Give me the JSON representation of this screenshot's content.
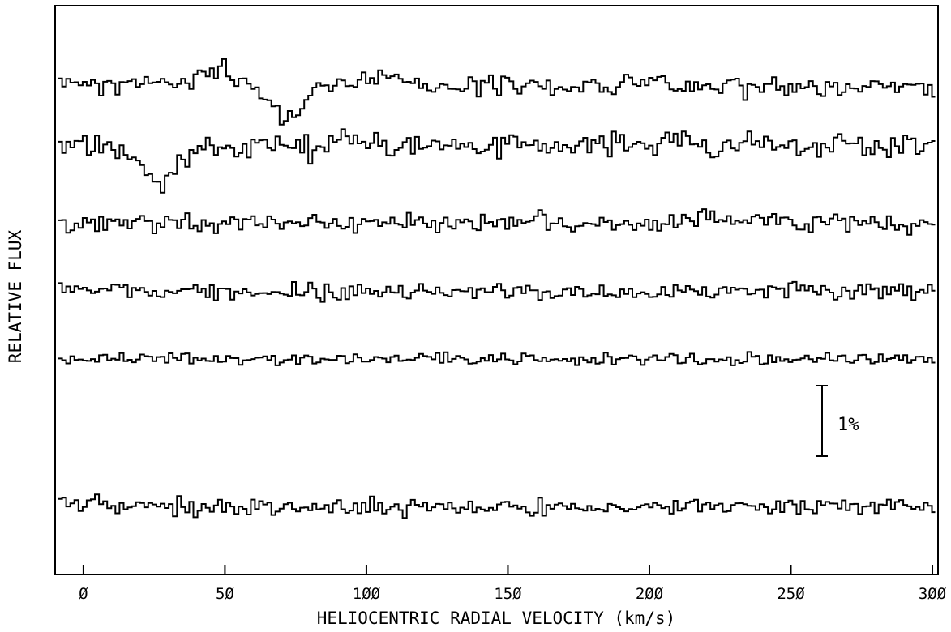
{
  "chart_data": {
    "type": "line",
    "title": "",
    "xlabel": "HELIOCENTRIC RADIAL VELOCITY (km/s)",
    "ylabel": "RELATIVE FLUX",
    "xlim": [
      -10,
      302
    ],
    "xticks": [
      0,
      50,
      100,
      150,
      200,
      250,
      300
    ],
    "xtick_labels": [
      "Ø",
      "5Ø",
      "1ØØ",
      "15Ø",
      "2ØØ",
      "25Ø",
      "3ØØ"
    ],
    "scale_bar": {
      "label": "1%",
      "percent": 1
    },
    "grid": false,
    "legend": "none",
    "line_color": "#000000",
    "series": [
      {
        "kind": "step",
        "seed": 11,
        "amp": 0.18,
        "features": [
          {
            "center": 72,
            "width": 6,
            "depth": 1.1
          },
          {
            "center": 45,
            "width": 6,
            "depth": -0.5
          },
          {
            "center": 105,
            "width": 8,
            "depth": -0.35
          }
        ]
      },
      {
        "kind": "step",
        "seed": 23,
        "amp": 0.22,
        "features": [
          {
            "center": 25,
            "width": 7,
            "depth": 1.2
          },
          {
            "center": 212,
            "width": 2,
            "depth": -0.5
          },
          {
            "center": 268,
            "width": 2,
            "depth": -0.45
          }
        ]
      },
      {
        "kind": "step",
        "seed": 37,
        "amp": 0.16,
        "features": [
          {
            "center": -6,
            "width": 1.5,
            "depth": 0.45
          },
          {
            "center": 160,
            "width": 2,
            "depth": -0.35
          },
          {
            "center": 222,
            "width": 3,
            "depth": -0.3
          }
        ]
      },
      {
        "kind": "step",
        "seed": 53,
        "amp": 0.14,
        "features": []
      },
      {
        "kind": "step",
        "seed": 71,
        "amp": 0.1,
        "features": []
      },
      {
        "kind": "step",
        "seed": 97,
        "amp": 0.14,
        "features": []
      }
    ]
  }
}
